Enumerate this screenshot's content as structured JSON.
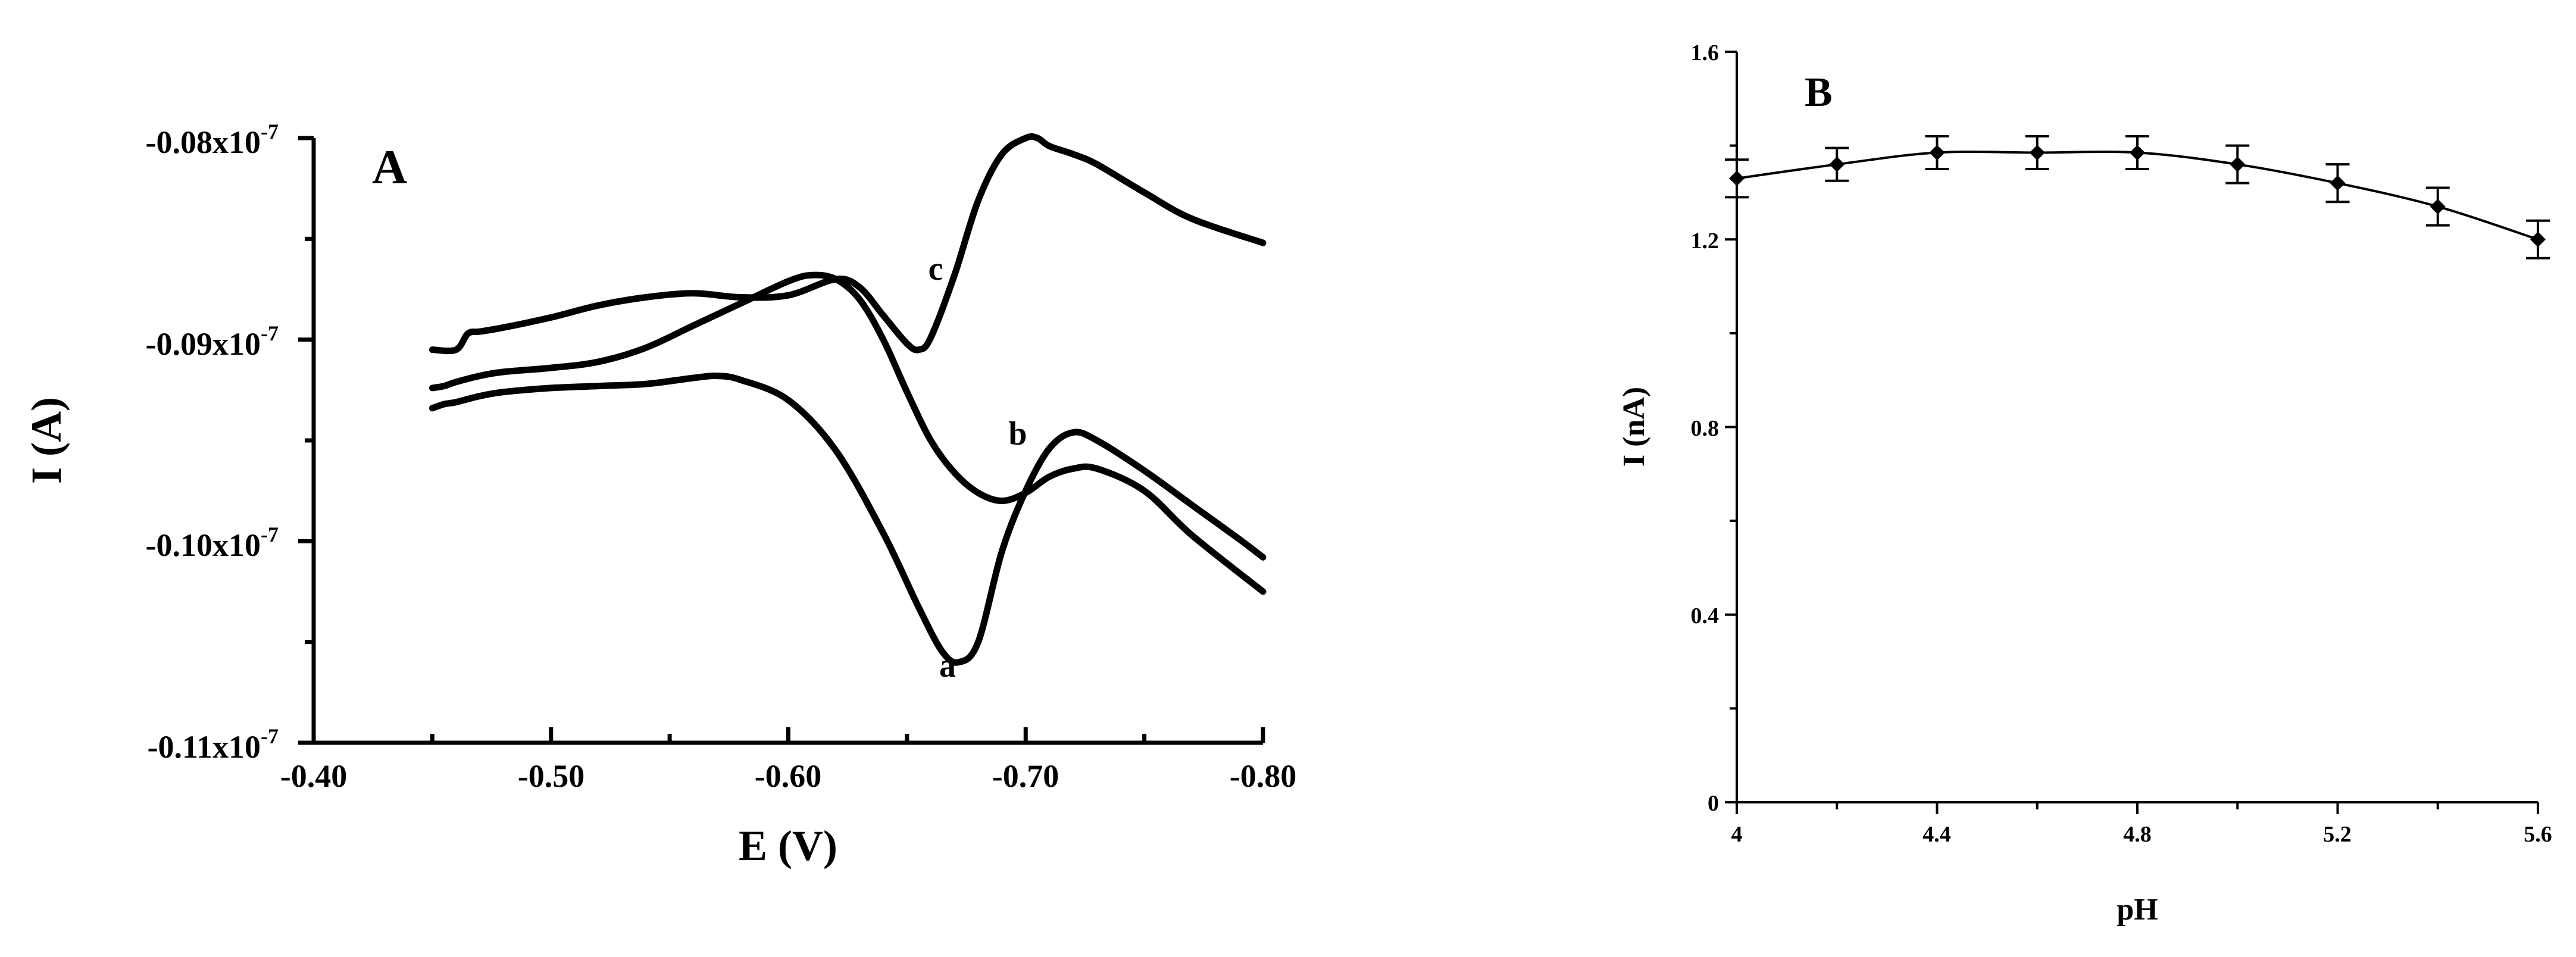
{
  "chart_data": [
    {
      "panel_label": "A",
      "type": "line",
      "xlabel": "E (V)",
      "ylabel": "I (A)",
      "xlim": [
        -0.4,
        -0.8
      ],
      "ylim": [
        -0.11,
        -0.08
      ],
      "x_ticks": [
        "-0.40",
        "-0.50",
        "-0.60",
        "-0.70",
        "-0.80"
      ],
      "y_ticks": [
        {
          "label": "-0.08x10",
          "exp": "-7"
        },
        {
          "label": "-0.09x10",
          "exp": "-7"
        },
        {
          "label": "-0.10x10",
          "exp": "-7"
        },
        {
          "label": "-0.11x10",
          "exp": "-7"
        }
      ],
      "grid": false,
      "series": [
        {
          "name": "a",
          "x": [
            -0.45,
            -0.455,
            -0.46,
            -0.47,
            -0.48,
            -0.5,
            -0.52,
            -0.54,
            -0.56,
            -0.57,
            -0.58,
            -0.6,
            -0.62,
            -0.64,
            -0.655,
            -0.665,
            -0.672,
            -0.68,
            -0.69,
            -0.7,
            -0.71,
            -0.72,
            -0.73,
            -0.75,
            -0.77,
            -0.79,
            -0.8
          ],
          "y": [
            -0.0934,
            -0.0932,
            -0.0931,
            -0.0928,
            -0.0926,
            -0.0924,
            -0.0923,
            -0.0922,
            -0.0919,
            -0.0918,
            -0.092,
            -0.093,
            -0.0955,
            -0.0996,
            -0.1033,
            -0.1055,
            -0.106,
            -0.105,
            -0.1005,
            -0.0975,
            -0.0954,
            -0.0946,
            -0.095,
            -0.0965,
            -0.0982,
            -0.0999,
            -0.1008
          ]
        },
        {
          "name": "b",
          "x": [
            -0.45,
            -0.455,
            -0.46,
            -0.47,
            -0.48,
            -0.5,
            -0.52,
            -0.54,
            -0.56,
            -0.58,
            -0.6,
            -0.61,
            -0.62,
            -0.63,
            -0.64,
            -0.65,
            -0.66,
            -0.67,
            -0.68,
            -0.69,
            -0.7,
            -0.71,
            -0.72,
            -0.73,
            -0.75,
            -0.77,
            -0.8
          ],
          "y": [
            -0.0924,
            -0.0923,
            -0.0921,
            -0.0918,
            -0.0916,
            -0.0914,
            -0.0911,
            -0.0904,
            -0.0893,
            -0.0882,
            -0.0871,
            -0.0868,
            -0.087,
            -0.088,
            -0.09,
            -0.0926,
            -0.095,
            -0.0966,
            -0.0976,
            -0.098,
            -0.0976,
            -0.0968,
            -0.0964,
            -0.0964,
            -0.0975,
            -0.0997,
            -0.1025
          ]
        },
        {
          "name": "c",
          "x": [
            -0.45,
            -0.46,
            -0.465,
            -0.47,
            -0.48,
            -0.5,
            -0.52,
            -0.54,
            -0.56,
            -0.58,
            -0.6,
            -0.62,
            -0.63,
            -0.64,
            -0.65,
            -0.655,
            -0.66,
            -0.67,
            -0.68,
            -0.69,
            -0.7,
            -0.705,
            -0.71,
            -0.72,
            -0.73,
            -0.75,
            -0.77,
            -0.8
          ],
          "y": [
            -0.0905,
            -0.0905,
            -0.0897,
            -0.0896,
            -0.0894,
            -0.0889,
            -0.0883,
            -0.0879,
            -0.0877,
            -0.0879,
            -0.0878,
            -0.087,
            -0.0874,
            -0.0888,
            -0.0902,
            -0.0905,
            -0.0899,
            -0.0868,
            -0.0831,
            -0.0808,
            -0.08,
            -0.08,
            -0.0804,
            -0.0808,
            -0.0813,
            -0.0827,
            -0.084,
            -0.0852
          ]
        }
      ]
    },
    {
      "panel_label": "B",
      "type": "line",
      "xlabel": "pH",
      "ylabel": "I (nA)",
      "xlim": [
        4.0,
        5.6
      ],
      "ylim": [
        0,
        1.6
      ],
      "x_ticks": [
        "4",
        "4.4",
        "4.8",
        "5.2",
        "5.6"
      ],
      "y_ticks": [
        "0",
        "0.4",
        "0.8",
        "1.2",
        "1.6"
      ],
      "grid": false,
      "series": [
        {
          "name": "",
          "x": [
            4.0,
            4.2,
            4.4,
            4.6,
            4.8,
            5.0,
            5.2,
            5.4,
            5.6
          ],
          "y": [
            1.33,
            1.36,
            1.385,
            1.385,
            1.385,
            1.36,
            1.32,
            1.27,
            1.2
          ],
          "error": [
            0.04,
            0.035,
            0.035,
            0.035,
            0.035,
            0.04,
            0.04,
            0.04,
            0.04
          ]
        }
      ]
    }
  ]
}
